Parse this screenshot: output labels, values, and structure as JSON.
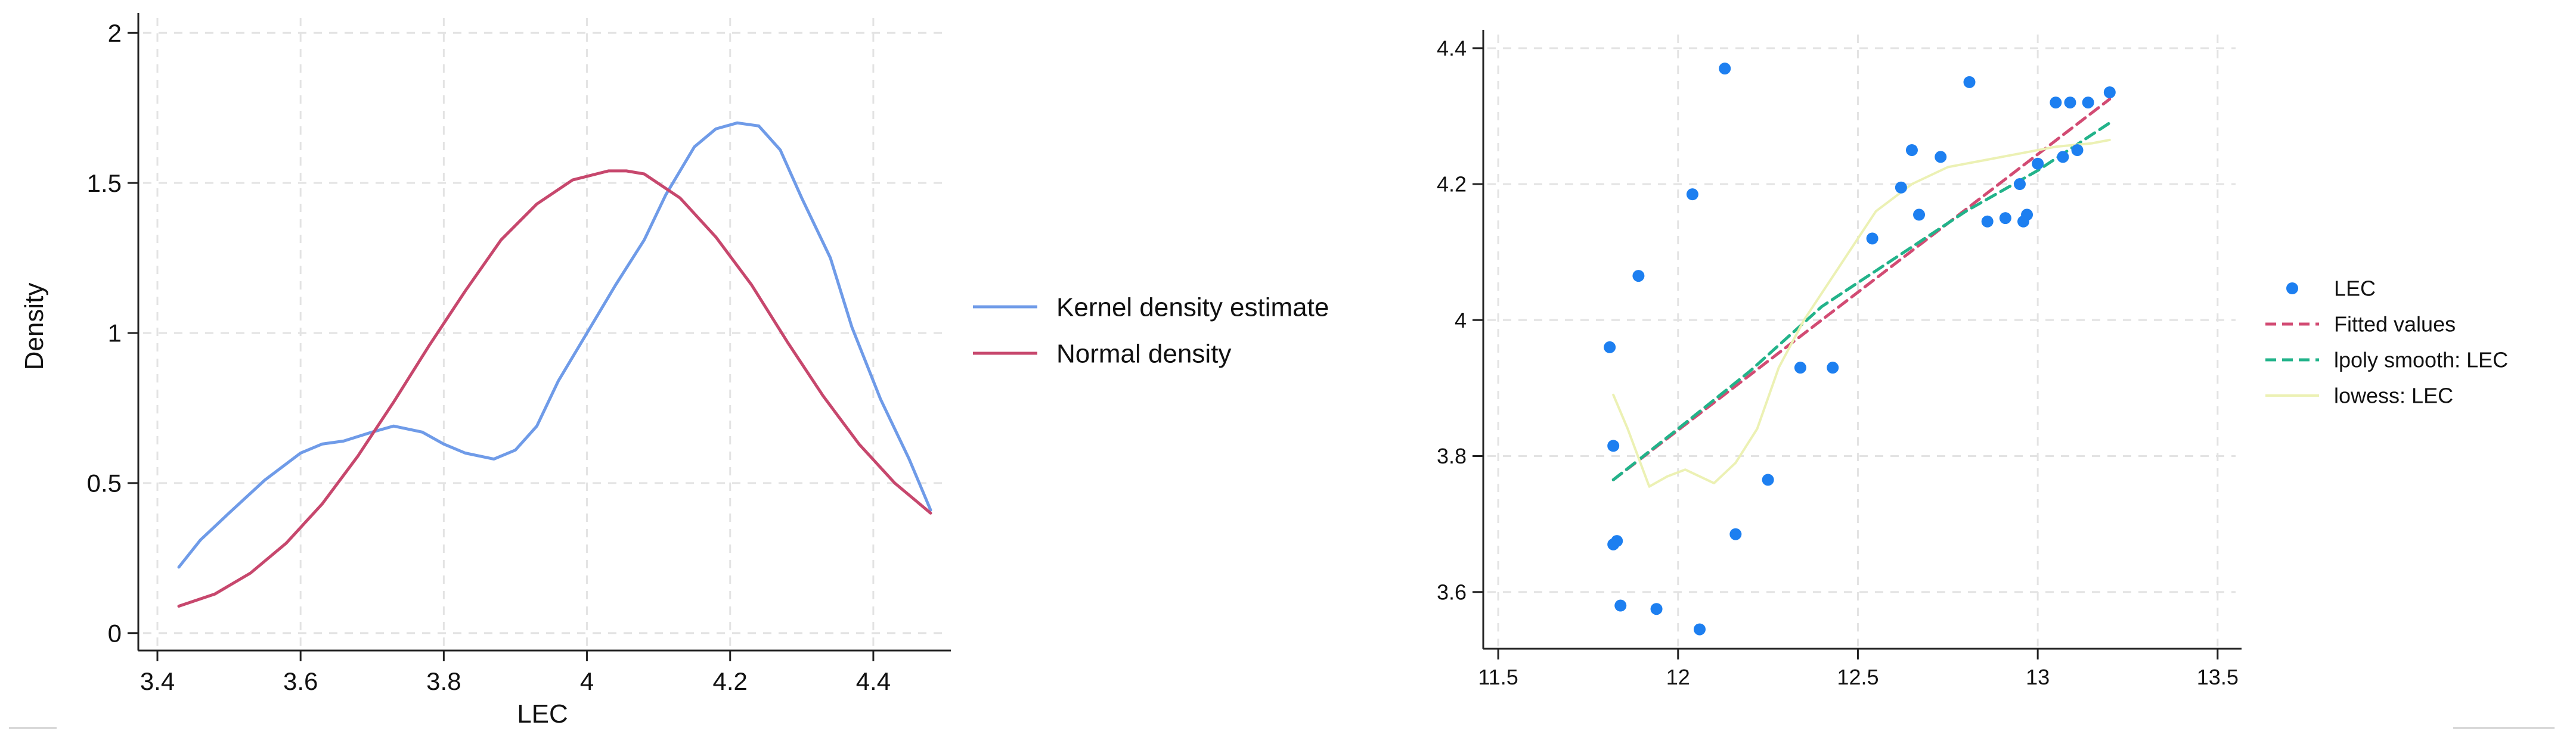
{
  "colors": {
    "kernel": "#6f9be8",
    "normal": "#c7476d",
    "scatter": "#1d7ff0",
    "fitted": "#d24b73",
    "lpoly": "#22b38a",
    "lowess": "#ecf1b4",
    "axis": "#222222",
    "grid": "#e3e3e3"
  },
  "chart_data": [
    {
      "type": "line",
      "title": "",
      "xlabel": "LEC",
      "ylabel": "Density",
      "xlim": [
        3.38,
        4.5
      ],
      "ylim": [
        -0.05,
        2.05
      ],
      "xticks": [
        3.4,
        3.6,
        3.8,
        4,
        4.2,
        4.4
      ],
      "xtick_labels": [
        "3.4",
        "3.6",
        "3.8",
        "4",
        "4.2",
        "4.4"
      ],
      "yticks": [
        0,
        0.5,
        1,
        1.5,
        2
      ],
      "ytick_labels": [
        "0",
        "0.5",
        "1",
        "1.5",
        "2"
      ],
      "grid": true,
      "legend_position": "right",
      "series": [
        {
          "name": "Kernel density estimate",
          "x": [
            3.43,
            3.46,
            3.5,
            3.55,
            3.6,
            3.63,
            3.66,
            3.7,
            3.73,
            3.77,
            3.8,
            3.83,
            3.87,
            3.9,
            3.93,
            3.96,
            4.0,
            4.04,
            4.08,
            4.11,
            4.15,
            4.18,
            4.21,
            4.24,
            4.27,
            4.3,
            4.34,
            4.37,
            4.41,
            4.45,
            4.48
          ],
          "y": [
            0.22,
            0.31,
            0.4,
            0.51,
            0.6,
            0.63,
            0.64,
            0.67,
            0.69,
            0.67,
            0.63,
            0.6,
            0.58,
            0.61,
            0.69,
            0.84,
            1.0,
            1.16,
            1.31,
            1.46,
            1.62,
            1.68,
            1.7,
            1.69,
            1.61,
            1.45,
            1.25,
            1.02,
            0.78,
            0.58,
            0.41
          ]
        },
        {
          "name": "Normal density",
          "x": [
            3.43,
            3.48,
            3.53,
            3.58,
            3.63,
            3.68,
            3.73,
            3.78,
            3.83,
            3.88,
            3.93,
            3.98,
            4.03,
            4.055,
            4.08,
            4.13,
            4.18,
            4.23,
            4.28,
            4.33,
            4.38,
            4.43,
            4.48
          ],
          "y": [
            0.09,
            0.13,
            0.2,
            0.3,
            0.43,
            0.59,
            0.77,
            0.96,
            1.14,
            1.31,
            1.43,
            1.51,
            1.54,
            1.54,
            1.53,
            1.45,
            1.32,
            1.16,
            0.97,
            0.79,
            0.63,
            0.5,
            0.4
          ]
        }
      ]
    },
    {
      "type": "scatter",
      "title": "",
      "xlabel": "",
      "ylabel": "",
      "xlim": [
        11.47,
        13.55
      ],
      "ylim": [
        3.52,
        4.42
      ],
      "xticks": [
        11.5,
        12,
        12.5,
        13,
        13.5
      ],
      "xtick_labels": [
        "11.5",
        "12",
        "12.5",
        "13",
        "13.5"
      ],
      "yticks": [
        3.6,
        3.8,
        4,
        4.2,
        4.4
      ],
      "ytick_labels": [
        "3.6",
        "3.8",
        "4",
        "4.2",
        "4.4"
      ],
      "grid": true,
      "legend_position": "right",
      "series": [
        {
          "name": "LEC",
          "type": "scatter",
          "x": [
            11.81,
            11.82,
            11.82,
            11.83,
            11.84,
            11.89,
            11.94,
            12.04,
            12.06,
            12.13,
            12.16,
            12.25,
            12.34,
            12.43,
            12.54,
            12.62,
            12.65,
            12.67,
            12.73,
            12.81,
            12.86,
            12.91,
            12.95,
            12.96,
            12.97,
            13.0,
            13.05,
            13.07,
            13.09,
            13.11,
            13.14,
            13.2
          ],
          "y": [
            3.96,
            3.815,
            3.67,
            3.675,
            3.58,
            4.065,
            3.575,
            4.185,
            3.545,
            4.37,
            3.685,
            3.765,
            3.93,
            3.93,
            4.12,
            4.195,
            4.25,
            4.155,
            4.24,
            4.35,
            4.145,
            4.15,
            4.2,
            4.145,
            4.155,
            4.23,
            4.32,
            4.24,
            4.32,
            4.25,
            4.32,
            4.335
          ]
        },
        {
          "name": "Fitted values",
          "type": "dashed-line",
          "x": [
            11.82,
            13.2
          ],
          "y": [
            3.765,
            4.325
          ]
        },
        {
          "name": "lpoly smooth: LEC",
          "type": "dashed-line",
          "x": [
            11.82,
            12.0,
            12.2,
            12.4,
            12.6,
            12.8,
            13.0,
            13.2
          ],
          "y": [
            3.765,
            3.84,
            3.925,
            4.02,
            4.09,
            4.16,
            4.22,
            4.29
          ]
        },
        {
          "name": "lowess: LEC",
          "type": "line",
          "x": [
            11.82,
            11.86,
            11.92,
            11.97,
            12.02,
            12.06,
            12.1,
            12.16,
            12.22,
            12.28,
            12.35,
            12.45,
            12.55,
            12.65,
            12.75,
            12.85,
            12.95,
            13.05,
            13.15,
            13.2
          ],
          "y": [
            3.89,
            3.84,
            3.755,
            3.77,
            3.78,
            3.77,
            3.76,
            3.79,
            3.84,
            3.93,
            4.0,
            4.08,
            4.16,
            4.2,
            4.225,
            4.235,
            4.245,
            4.255,
            4.26,
            4.265
          ]
        }
      ]
    }
  ]
}
